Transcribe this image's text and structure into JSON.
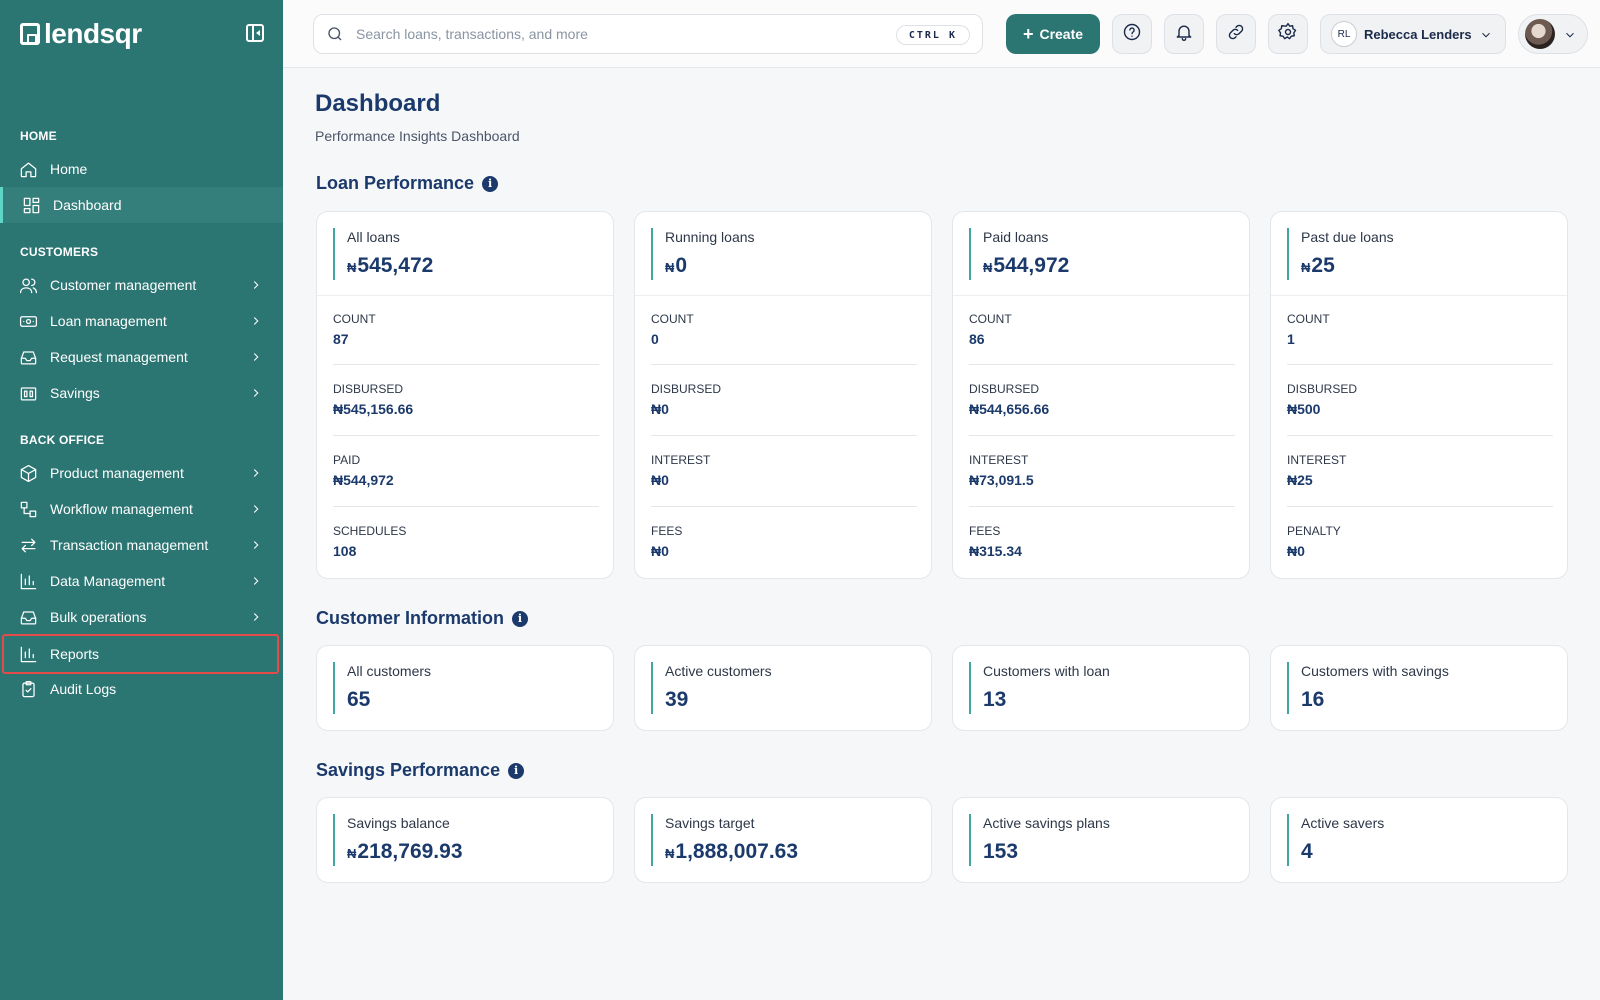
{
  "brand": {
    "name": "lendsqr"
  },
  "sidebar": {
    "sections": {
      "home": "HOME",
      "customers": "CUSTOMERS",
      "back_office": "BACK OFFICE"
    },
    "items": [
      {
        "label": "Home",
        "icon": "home-icon"
      },
      {
        "label": "Dashboard",
        "icon": "dashboard-icon",
        "active": true
      },
      {
        "label": "Customer management",
        "icon": "users-icon"
      },
      {
        "label": "Loan management",
        "icon": "cash-icon"
      },
      {
        "label": "Request management",
        "icon": "inbox-icon"
      },
      {
        "label": "Savings",
        "icon": "bank-icon"
      },
      {
        "label": "Product management",
        "icon": "box-icon"
      },
      {
        "label": "Workflow management",
        "icon": "workflow-icon"
      },
      {
        "label": "Transaction management",
        "icon": "transfer-icon"
      },
      {
        "label": "Data Management",
        "icon": "chart-icon"
      },
      {
        "label": "Bulk operations",
        "icon": "inbox-icon"
      },
      {
        "label": "Reports",
        "icon": "chart-icon",
        "highlighted": true
      },
      {
        "label": "Audit Logs",
        "icon": "clipboard-icon"
      }
    ]
  },
  "topbar": {
    "search_placeholder": "Search loans, transactions, and more",
    "shortcut": "CTRL K",
    "create_label": "Create",
    "user": {
      "initials": "RL",
      "name": "Rebecca Lenders"
    }
  },
  "page": {
    "title": "Dashboard",
    "subtitle": "Performance Insights Dashboard"
  },
  "currency_symbol": "₦",
  "loan_performance": {
    "title": "Loan Performance",
    "cards": [
      {
        "label": "All loans",
        "value": "545,472",
        "stats": [
          {
            "k": "COUNT",
            "v": "87"
          },
          {
            "k": "DISBURSED",
            "v": "₦545,156.66"
          },
          {
            "k": "PAID",
            "v": "₦544,972"
          },
          {
            "k": "SCHEDULES",
            "v": "108"
          }
        ]
      },
      {
        "label": "Running loans",
        "value": "0",
        "stats": [
          {
            "k": "COUNT",
            "v": "0"
          },
          {
            "k": "DISBURSED",
            "v": "₦0"
          },
          {
            "k": "INTEREST",
            "v": "₦0"
          },
          {
            "k": "FEES",
            "v": "₦0"
          }
        ]
      },
      {
        "label": "Paid loans",
        "value": "544,972",
        "stats": [
          {
            "k": "COUNT",
            "v": "86"
          },
          {
            "k": "DISBURSED",
            "v": "₦544,656.66"
          },
          {
            "k": "INTEREST",
            "v": "₦73,091.5"
          },
          {
            "k": "FEES",
            "v": "₦315.34"
          }
        ]
      },
      {
        "label": "Past due loans",
        "value": "25",
        "stats": [
          {
            "k": "COUNT",
            "v": "1"
          },
          {
            "k": "DISBURSED",
            "v": "₦500"
          },
          {
            "k": "INTEREST",
            "v": "₦25"
          },
          {
            "k": "PENALTY",
            "v": "₦0"
          }
        ]
      }
    ]
  },
  "customer_information": {
    "title": "Customer Information",
    "cards": [
      {
        "label": "All customers",
        "value": "65"
      },
      {
        "label": "Active customers",
        "value": "39"
      },
      {
        "label": "Customers with loan",
        "value": "13"
      },
      {
        "label": "Customers with savings",
        "value": "16"
      }
    ]
  },
  "savings_performance": {
    "title": "Savings Performance",
    "cards": [
      {
        "label": "Savings balance",
        "value": "218,769.93",
        "currency": true
      },
      {
        "label": "Savings target",
        "value": "1,888,007.63",
        "currency": true
      },
      {
        "label": "Active savings plans",
        "value": "153"
      },
      {
        "label": "Active savers",
        "value": "4"
      }
    ]
  },
  "colors": {
    "sidebar": "#2b7572",
    "accent": "#3fa6a0",
    "heading": "#1b3a6b",
    "highlight_border": "#e54b4b"
  }
}
